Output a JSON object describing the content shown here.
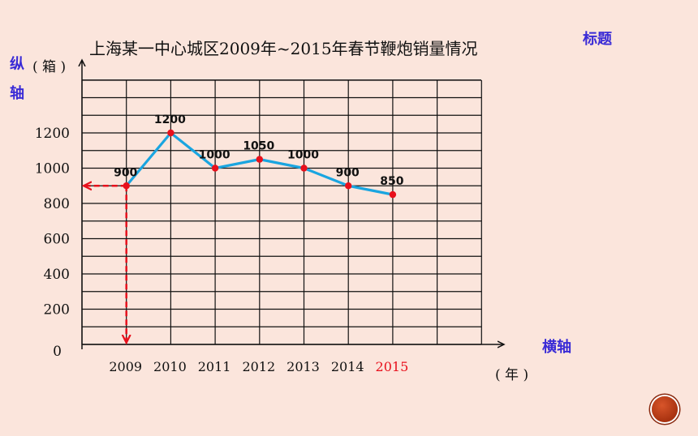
{
  "slide": {
    "title": "上海某一中心城区2009年~2015年春节鞭炮销量情况",
    "tag_title": "标题",
    "tag_y_axis": "纵轴",
    "tag_x_axis": "横轴",
    "y_unit": "( 箱 )",
    "x_unit": "( 年 )"
  },
  "colors": {
    "line": "#1aa5e0",
    "point": "#e8101c",
    "grid": "#111111",
    "highlight": "#e8101c",
    "tag": "#3a2bd6"
  },
  "chart_data": {
    "type": "line",
    "title": "上海某一中心城区2009年~2015年春节鞭炮销量情况",
    "xlabel": "( 年 )",
    "ylabel": "( 箱 )",
    "categories": [
      "2009",
      "2010",
      "2011",
      "2012",
      "2013",
      "2014",
      "2015"
    ],
    "series": [
      {
        "values": [
          900,
          1200,
          1000,
          1050,
          1000,
          900,
          850
        ]
      }
    ],
    "y_ticks": [
      0,
      200,
      400,
      600,
      800,
      1000,
      1200
    ],
    "ylim": [
      0,
      1500
    ],
    "grid": true,
    "highlight": {
      "category": "2009",
      "value": 900,
      "dashed_guides": true
    }
  }
}
